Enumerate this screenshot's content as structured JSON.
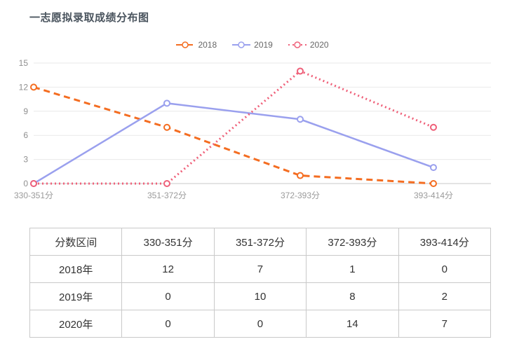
{
  "page": {
    "title": "一志愿拟录取成绩分布图"
  },
  "chart_data": {
    "type": "line",
    "title": "一志愿拟录取成绩分布图",
    "categories": [
      "330-351分",
      "351-372分",
      "372-393分",
      "393-414分"
    ],
    "series": [
      {
        "name": "2018",
        "values": [
          12,
          7,
          1,
          0
        ],
        "color": "#f46d21",
        "line_style": "dashed"
      },
      {
        "name": "2019",
        "values": [
          0,
          10,
          8,
          2
        ],
        "color": "#9aa0ee",
        "line_style": "solid"
      },
      {
        "name": "2020",
        "values": [
          0,
          0,
          14,
          7
        ],
        "color": "#ef6079",
        "line_style": "dotted"
      }
    ],
    "xlabel": "",
    "ylabel": "",
    "ylim": [
      0,
      15
    ],
    "yticks": [
      0,
      3,
      6,
      9,
      12,
      15
    ],
    "grid": true,
    "legend_position": "top"
  },
  "table": {
    "header": [
      "分数区间",
      "330-351分",
      "351-372分",
      "372-393分",
      "393-414分"
    ],
    "rows": [
      {
        "label": "2018年",
        "values": [
          "12",
          "7",
          "1",
          "0"
        ]
      },
      {
        "label": "2019年",
        "values": [
          "0",
          "10",
          "8",
          "2"
        ]
      },
      {
        "label": "2020年",
        "values": [
          "0",
          "0",
          "14",
          "7"
        ]
      }
    ]
  }
}
